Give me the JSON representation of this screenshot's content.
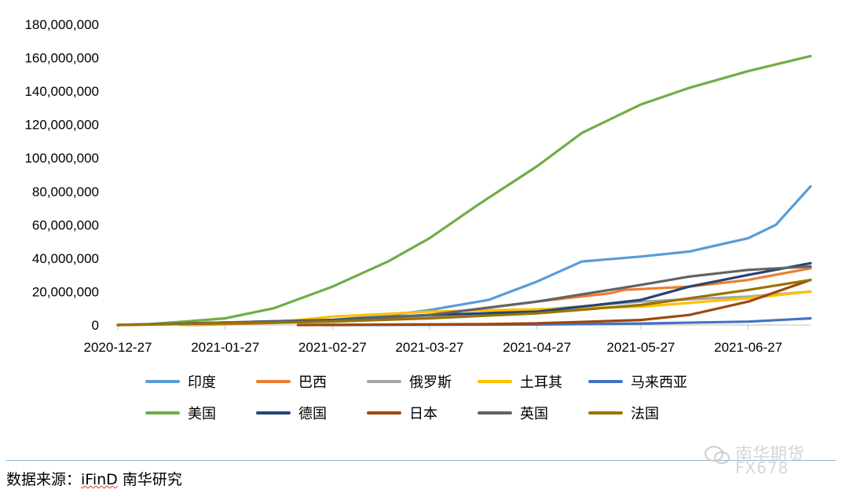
{
  "chart_data": {
    "type": "line",
    "x_ticks": [
      "2020-12-27",
      "2021-01-27",
      "2021-02-27",
      "2021-03-27",
      "2021-04-27",
      "2021-05-27",
      "2021-06-27"
    ],
    "y_ticks": [
      "180,000,000",
      "160,000,000",
      "140,000,000",
      "120,000,000",
      "100,000,000",
      "80,000,000",
      "60,000,000",
      "40,000,000",
      "20,000,000",
      "0"
    ],
    "ylim": [
      0,
      180000000
    ],
    "xlim": [
      "2020-12-27",
      "2021-07-15"
    ],
    "grid": false,
    "legend_position": "bottom",
    "series": [
      {
        "name": "印度",
        "color": "#5b9bd5",
        "points": [
          [
            "2021-01-16",
            0
          ],
          [
            "2021-02-05",
            2000000
          ],
          [
            "2021-02-27",
            3000000
          ],
          [
            "2021-03-16",
            6000000
          ],
          [
            "2021-03-27",
            9000000
          ],
          [
            "2021-04-13",
            15000000
          ],
          [
            "2021-04-27",
            26000000
          ],
          [
            "2021-05-10",
            38000000
          ],
          [
            "2021-05-27",
            41000000
          ],
          [
            "2021-06-10",
            44000000
          ],
          [
            "2021-06-27",
            52000000
          ],
          [
            "2021-07-05",
            60000000
          ],
          [
            "2021-07-15",
            83000000
          ]
        ]
      },
      {
        "name": "巴西",
        "color": "#ed7d31",
        "points": [
          [
            "2021-01-18",
            0
          ],
          [
            "2021-02-15",
            1500000
          ],
          [
            "2021-02-27",
            3000000
          ],
          [
            "2021-03-27",
            6000000
          ],
          [
            "2021-04-27",
            14000000
          ],
          [
            "2021-05-18",
            19000000
          ],
          [
            "2021-05-22",
            21000000
          ],
          [
            "2021-06-10",
            23000000
          ],
          [
            "2021-06-27",
            27000000
          ],
          [
            "2021-07-15",
            34000000
          ]
        ]
      },
      {
        "name": "俄罗斯",
        "color": "#a5a5a5",
        "points": [
          [
            "2020-12-27",
            0
          ],
          [
            "2021-02-27",
            2000000
          ],
          [
            "2021-03-27",
            5000000
          ],
          [
            "2021-04-27",
            9000000
          ],
          [
            "2021-05-27",
            14000000
          ],
          [
            "2021-06-27",
            17000000
          ],
          [
            "2021-07-15",
            20000000
          ]
        ]
      },
      {
        "name": "土耳其",
        "color": "#ffc000",
        "points": [
          [
            "2021-01-14",
            0
          ],
          [
            "2021-02-12",
            2000000
          ],
          [
            "2021-02-27",
            5000000
          ],
          [
            "2021-03-27",
            8000000
          ],
          [
            "2021-04-27",
            9500000
          ],
          [
            "2021-05-27",
            11000000
          ],
          [
            "2021-06-27",
            16000000
          ],
          [
            "2021-07-15",
            20000000
          ]
        ]
      },
      {
        "name": "马来西亚",
        "color": "#4472c4",
        "points": [
          [
            "2021-02-24",
            0
          ],
          [
            "2021-04-27",
            300000
          ],
          [
            "2021-05-27",
            900000
          ],
          [
            "2021-06-27",
            2000000
          ],
          [
            "2021-07-15",
            4000000
          ]
        ]
      },
      {
        "name": "美国",
        "color": "#70ad47",
        "points": [
          [
            "2020-12-27",
            0
          ],
          [
            "2021-01-05",
            500000
          ],
          [
            "2021-01-15",
            2000000
          ],
          [
            "2021-01-27",
            4000000
          ],
          [
            "2021-02-10",
            10000000
          ],
          [
            "2021-02-27",
            23000000
          ],
          [
            "2021-03-15",
            38000000
          ],
          [
            "2021-03-27",
            52000000
          ],
          [
            "2021-04-10",
            72000000
          ],
          [
            "2021-04-27",
            95000000
          ],
          [
            "2021-05-10",
            115000000
          ],
          [
            "2021-05-27",
            132000000
          ],
          [
            "2021-06-10",
            142000000
          ],
          [
            "2021-06-27",
            152000000
          ],
          [
            "2021-07-15",
            161000000
          ]
        ]
      },
      {
        "name": "德国",
        "color": "#264478",
        "points": [
          [
            "2020-12-27",
            0
          ],
          [
            "2021-01-27",
            1500000
          ],
          [
            "2021-02-27",
            3000000
          ],
          [
            "2021-03-27",
            6000000
          ],
          [
            "2021-04-27",
            8000000
          ],
          [
            "2021-05-27",
            15000000
          ],
          [
            "2021-06-10",
            23000000
          ],
          [
            "2021-06-27",
            30000000
          ],
          [
            "2021-07-15",
            37000000
          ]
        ]
      },
      {
        "name": "日本",
        "color": "#9e480e",
        "points": [
          [
            "2021-02-17",
            0
          ],
          [
            "2021-04-12",
            500000
          ],
          [
            "2021-04-27",
            1000000
          ],
          [
            "2021-05-27",
            3000000
          ],
          [
            "2021-06-10",
            6000000
          ],
          [
            "2021-06-27",
            14000000
          ],
          [
            "2021-07-15",
            27000000
          ]
        ]
      },
      {
        "name": "英国",
        "color": "#636363",
        "points": [
          [
            "2020-12-27",
            0
          ],
          [
            "2021-01-27",
            1500000
          ],
          [
            "2021-02-27",
            2500000
          ],
          [
            "2021-03-27",
            6000000
          ],
          [
            "2021-04-27",
            14000000
          ],
          [
            "2021-05-27",
            24000000
          ],
          [
            "2021-06-10",
            29000000
          ],
          [
            "2021-06-27",
            33000000
          ],
          [
            "2021-07-15",
            35000000
          ]
        ]
      },
      {
        "name": "法国",
        "color": "#997300",
        "points": [
          [
            "2020-12-27",
            0
          ],
          [
            "2021-01-27",
            1000000
          ],
          [
            "2021-02-27",
            2000000
          ],
          [
            "2021-03-27",
            4000000
          ],
          [
            "2021-04-27",
            7000000
          ],
          [
            "2021-05-27",
            12000000
          ],
          [
            "2021-06-10",
            16000000
          ],
          [
            "2021-06-27",
            21000000
          ],
          [
            "2021-07-15",
            27000000
          ]
        ]
      }
    ]
  },
  "footer": {
    "source_prefix": "数据来源：",
    "source_brand": "iFinD",
    "source_suffix": " 南华研究"
  },
  "watermark": {
    "text": "南华期货",
    "sub": "FX678"
  }
}
